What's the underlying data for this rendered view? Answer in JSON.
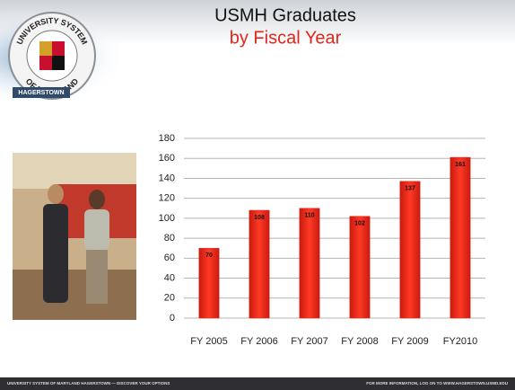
{
  "logo": {
    "top": "UNIVERSITY SYSTEM",
    "bottom": "OF MARYLAND",
    "campus": "HAGERSTOWN"
  },
  "chart_data": {
    "type": "bar",
    "title": "USMH Graduates",
    "subtitle": "by Fiscal Year",
    "categories": [
      "FY 2005",
      "FY 2006",
      "FY 2007",
      "FY 2008",
      "FY 2009",
      "FY2010"
    ],
    "values": [
      70,
      108,
      110,
      102,
      137,
      161
    ],
    "color": "#e5261b",
    "ylim": [
      0,
      180
    ],
    "yticks": [
      0,
      20,
      40,
      60,
      80,
      100,
      120,
      140,
      160,
      180
    ],
    "grid": true
  },
  "footer": {
    "left": "UNIVERSITY SYSTEM OF MARYLAND HAGERSTOWN — DISCOVER YOUR OPTIONS",
    "right": "FOR MORE INFORMATION, LOG ON TO WWW.HAGERSTOWN.USMD.EDU"
  }
}
